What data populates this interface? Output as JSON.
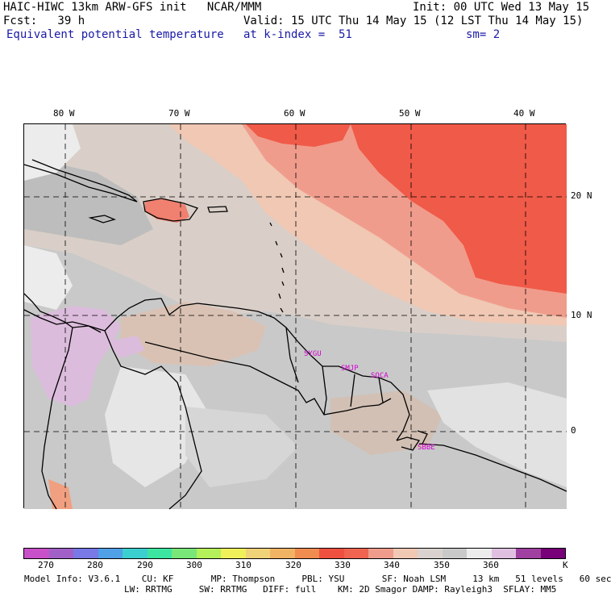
{
  "header": {
    "line1_left": "HAIC-HIWC 13km ARW-GFS init   NCAR/MMM",
    "line1_right": "Init: 00 UTC Wed 13 May 15",
    "line2_left": "Fcst:   39 h",
    "line2_right": "Valid: 15 UTC Thu 14 May 15 (12 LST Thu 14 May 15)",
    "line3_left": "Equivalent potential temperature",
    "line3_mid": "at k-index =  51",
    "line3_right": "sm= 2"
  },
  "map": {
    "lon_labels": [
      "80 W",
      "70 W",
      "60 W",
      "50 W",
      "40 W"
    ],
    "lat_labels": [
      "20 N",
      "10 N",
      "0"
    ],
    "stations": [
      "SYGU",
      "SMJP",
      "SOCA",
      "SBBE"
    ]
  },
  "colorbar": {
    "colors": [
      "#c850c8",
      "#a060c8",
      "#7878e6",
      "#4fa0e6",
      "#3ccfcf",
      "#3ce6a0",
      "#78e678",
      "#b4f05a",
      "#f0f05a",
      "#f0d278",
      "#f0b464",
      "#f08c50",
      "#f05040",
      "#f06450",
      "#f09c8c",
      "#f0c8b4",
      "#d9d2ce",
      "#c9c9c9",
      "#ececec",
      "#e0c0e0",
      "#a040a0",
      "#780078"
    ],
    "tick_labels": [
      "270",
      "280",
      "290",
      "300",
      "310",
      "320",
      "330",
      "340",
      "350",
      "360",
      "K"
    ]
  },
  "footer": {
    "line1": "Model Info: V3.6.1    CU: KF       MP: Thompson     PBL: YSU       SF: Noah LSM     13 km   51 levels   60 sec",
    "line2": "LW: RRTMG     SW: RRTMG   DIFF: full    KM: 2D Smagor DAMP: Rayleigh3  SFLAY: MM5"
  }
}
